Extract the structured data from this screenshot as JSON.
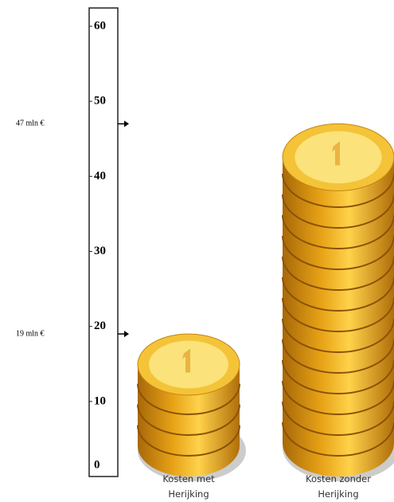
{
  "chart_data": {
    "type": "coin-stack",
    "categories": [
      "Kosten met Herijking",
      "Kosten zonder Herijking"
    ],
    "values": [
      19,
      47
    ],
    "value_labels": [
      "19 mln €",
      "47 mln €"
    ],
    "color": "#e8a317",
    "ylim": [
      0,
      60
    ],
    "yticks": [
      0,
      10,
      20,
      30,
      40,
      50,
      60
    ]
  }
}
